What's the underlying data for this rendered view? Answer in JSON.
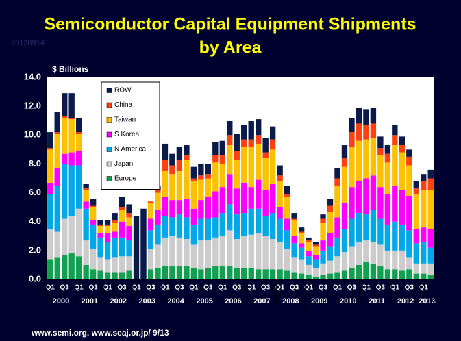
{
  "chart_data": {
    "type": "stacked_bar",
    "title_lines": [
      "Semiconductor Capital Equipment Shipments",
      "by Area"
    ],
    "date_stamp": "20130914",
    "y_label": "$ Billions",
    "source": "www.semi.org, www.seaj.or.jp/  9/13",
    "categories": [
      "Q1",
      null,
      "Q3",
      null,
      "Q1",
      null,
      "Q3",
      null,
      "Q1",
      null,
      "Q3",
      null,
      "Q1",
      null,
      "Q3",
      null,
      "Q1",
      null,
      "Q3",
      null,
      "Q1",
      null,
      "Q3",
      null,
      "Q1",
      null,
      "Q3",
      null,
      "Q1",
      null,
      "Q3",
      null,
      "Q1",
      null,
      "Q3",
      null,
      "Q1",
      null,
      "Q3",
      null,
      "Q1",
      null,
      "Q3",
      null,
      "Q1",
      null,
      "Q3",
      null,
      "Q1",
      null,
      "Q3",
      null,
      "Q1",
      null
    ],
    "years": [
      "2000",
      "2001",
      "2002",
      "2003",
      "2004",
      "2005",
      "2006",
      "2007",
      "2008",
      "2009",
      "2010",
      "2011",
      "2012",
      "2013"
    ],
    "ylim": [
      0,
      14
    ],
    "yticks": [
      {
        "value": 0,
        "label": "0.0"
      },
      {
        "value": 2,
        "label": "2.0"
      },
      {
        "value": 4,
        "label": "4.0"
      },
      {
        "value": 6,
        "label": "6.0"
      },
      {
        "value": 8,
        "label": "8.0"
      },
      {
        "value": 10,
        "label": "10.0"
      },
      {
        "value": 12,
        "label": "12.0"
      },
      {
        "value": 14,
        "label": "14.0"
      }
    ],
    "grid": false,
    "legend": "upper-left",
    "series": [
      {
        "name": "Europe",
        "color": "#10a050",
        "values": [
          1.4,
          1.5,
          1.7,
          1.8,
          1.6,
          1.0,
          0.7,
          0.6,
          0.5,
          0.5,
          0.5,
          0.6,
          null,
          null,
          0.7,
          0.8,
          0.9,
          0.9,
          0.9,
          0.9,
          0.8,
          0.7,
          0.8,
          0.9,
          0.9,
          0.9,
          0.8,
          0.8,
          0.8,
          0.7,
          0.7,
          0.7,
          0.7,
          0.6,
          0.5,
          0.4,
          0.3,
          0.2,
          0.3,
          0.4,
          0.5,
          0.6,
          0.8,
          1.0,
          1.2,
          1.1,
          0.9,
          0.7,
          0.7,
          0.6,
          0.7,
          0.4,
          0.4,
          0.3
        ]
      },
      {
        "name": "Japan",
        "color": "#cccccc",
        "values": [
          2.1,
          1.8,
          2.5,
          2.6,
          3.3,
          1.7,
          1.4,
          0.9,
          0.9,
          1.0,
          1.1,
          1.0,
          null,
          null,
          1.4,
          1.6,
          2.0,
          2.1,
          2.0,
          1.9,
          1.6,
          2.0,
          1.9,
          2.0,
          2.1,
          2.5,
          2.0,
          2.2,
          2.3,
          2.5,
          2.3,
          2.1,
          1.9,
          1.5,
          1.0,
          1.0,
          0.7,
          0.6,
          0.8,
          0.9,
          1.1,
          1.3,
          1.5,
          1.6,
          1.5,
          1.5,
          1.5,
          1.3,
          1.3,
          1.4,
          0.8,
          0.7,
          0.7,
          0.8
        ]
      },
      {
        "name": "N America",
        "color": "#00a8e8",
        "values": [
          2.4,
          3.2,
          3.8,
          3.5,
          3.0,
          2.2,
          1.7,
          1.4,
          1.2,
          1.4,
          1.3,
          1.1,
          null,
          null,
          1.3,
          1.4,
          1.5,
          1.3,
          1.6,
          1.5,
          1.4,
          1.5,
          1.5,
          1.4,
          1.6,
          1.8,
          1.7,
          1.6,
          1.8,
          1.7,
          1.4,
          1.8,
          1.6,
          1.3,
          1.0,
          0.8,
          0.6,
          0.6,
          0.9,
          1.0,
          1.3,
          1.6,
          1.9,
          2.0,
          1.8,
          2.2,
          1.8,
          1.8,
          2.0,
          1.8,
          1.9,
          1.4,
          1.5,
          1.1
        ]
      },
      {
        "name": "S Korea",
        "color": "#ff00ff",
        "values": [
          0.8,
          1.2,
          0.7,
          0.9,
          1.0,
          0.5,
          0.3,
          0.3,
          0.6,
          0.4,
          1.1,
          1.0,
          null,
          null,
          0.8,
          1.0,
          1.3,
          1.2,
          1.0,
          1.3,
          1.1,
          1.3,
          1.5,
          1.8,
          1.8,
          2.1,
          1.8,
          2.1,
          1.5,
          2.0,
          1.8,
          2.0,
          0.8,
          0.8,
          0.5,
          0.3,
          0.4,
          0.3,
          0.7,
          0.9,
          1.4,
          1.8,
          2.2,
          2.2,
          2.5,
          2.4,
          2.2,
          2.1,
          2.5,
          2.4,
          2.4,
          1.0,
          1.0,
          1.3
        ]
      },
      {
        "name": "Taiwan",
        "color": "#ffc000",
        "values": [
          2.3,
          2.4,
          2.5,
          2.3,
          1.2,
          0.8,
          0.9,
          0.5,
          0.5,
          0.6,
          0.8,
          0.6,
          null,
          null,
          1.1,
          1.2,
          1.8,
          1.8,
          2.0,
          2.7,
          1.9,
          1.4,
          1.3,
          2.0,
          1.6,
          2.0,
          2.0,
          2.5,
          2.8,
          2.5,
          2.2,
          2.4,
          1.8,
          1.5,
          1.1,
          0.7,
          0.6,
          0.6,
          1.2,
          1.5,
          2.2,
          2.5,
          2.8,
          2.8,
          2.7,
          2.6,
          2.2,
          2.2,
          2.8,
          2.6,
          2.1,
          2.4,
          2.6,
          2.7
        ]
      },
      {
        "name": "China",
        "color": "#ff4010",
        "values": [
          0.1,
          0.1,
          0.1,
          0.1,
          0.1,
          0.1,
          0.1,
          0.1,
          0.1,
          0.2,
          0.2,
          0.3,
          null,
          null,
          0.1,
          0.2,
          0.8,
          0.6,
          0.8,
          0.3,
          0.2,
          0.3,
          0.3,
          0.5,
          0.6,
          0.7,
          0.6,
          0.5,
          0.5,
          0.6,
          0.4,
          0.7,
          0.4,
          0.2,
          0.1,
          0.1,
          0.1,
          0.1,
          0.3,
          0.4,
          0.5,
          0.6,
          1.0,
          1.2,
          1.0,
          1.0,
          0.5,
          0.6,
          0.7,
          0.5,
          0.6,
          0.4,
          0.6,
          0.8
        ]
      },
      {
        "name": "ROW",
        "color": "#0a1a4a",
        "values": [
          1.1,
          1.4,
          1.6,
          1.7,
          1.0,
          0.3,
          0.5,
          0.3,
          0.3,
          0.5,
          0.7,
          0.6,
          4.4,
          4.9,
          0.0,
          0.3,
          1.1,
          0.8,
          0.9,
          0.7,
          0.8,
          0.8,
          0.7,
          0.9,
          1.0,
          1.0,
          1.2,
          1.0,
          1.3,
          1.1,
          1.0,
          0.9,
          0.7,
          0.6,
          0.4,
          0.3,
          0.2,
          0.2,
          0.3,
          0.5,
          0.7,
          0.9,
          1.0,
          1.1,
          1.1,
          1.1,
          0.8,
          0.6,
          0.7,
          0.6,
          0.5,
          0.5,
          0.5,
          0.6
        ]
      }
    ]
  }
}
